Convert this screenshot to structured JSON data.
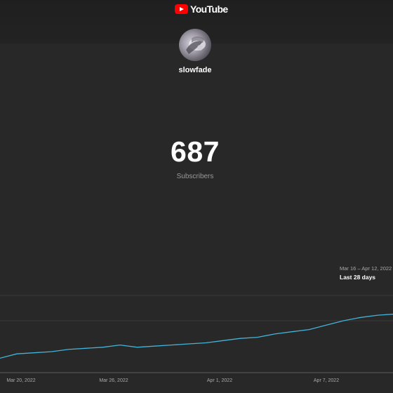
{
  "header": {
    "logo_text": "YouTube"
  },
  "channel": {
    "name": "slowfade"
  },
  "stats": {
    "subscriber_count": "687",
    "subscriber_label": "Subscribers"
  },
  "chart_summary": {
    "date_range": "Mar 16 – Apr 12, 2022",
    "period": "Last 28 days"
  },
  "colors": {
    "background": "#282828",
    "line": "#41b4d9",
    "brand_red": "#ff0000"
  },
  "chart_data": {
    "type": "line",
    "title": "",
    "xlabel": "",
    "ylabel": "",
    "x_ticks": [
      "Mar 20, 2022",
      "Mar 26, 2022",
      "Apr 1, 2022",
      "Apr 7, 2022"
    ],
    "x": [
      "Mar 18",
      "Mar 19",
      "Mar 20",
      "Mar 21",
      "Mar 22",
      "Mar 23",
      "Mar 24",
      "Mar 25",
      "Mar 26",
      "Mar 27",
      "Mar 28",
      "Mar 29",
      "Mar 30",
      "Mar 31",
      "Apr 1",
      "Apr 2",
      "Apr 3",
      "Apr 4",
      "Apr 5",
      "Apr 6",
      "Apr 7",
      "Apr 8",
      "Apr 9",
      "Apr 10",
      "Apr 11",
      "Apr 12"
    ],
    "series": [
      {
        "values": [
          630,
          633,
          637,
          638,
          639,
          641,
          642,
          643,
          645,
          643,
          644,
          645,
          646,
          647,
          649,
          651,
          652,
          655,
          657,
          659,
          663,
          667,
          670,
          672,
          673,
          676
        ]
      }
    ],
    "ylim": [
      620,
      700
    ],
    "grid": true,
    "legend": "none"
  }
}
